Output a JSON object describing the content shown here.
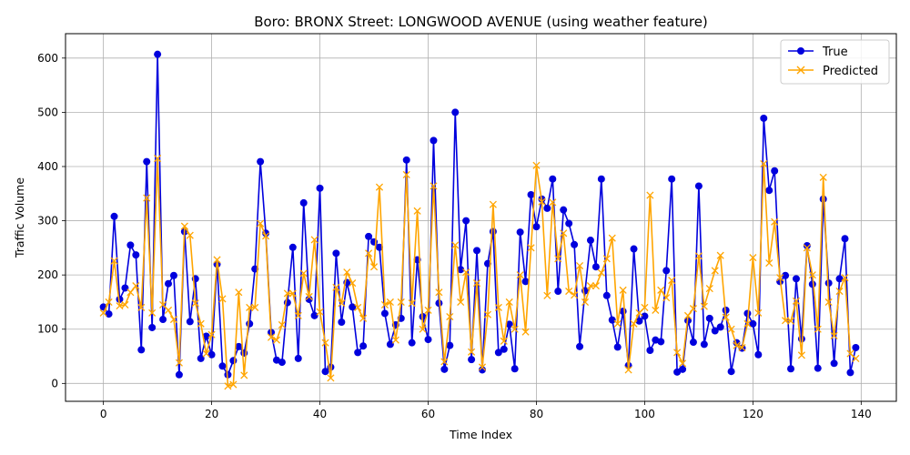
{
  "chart_data": {
    "type": "line",
    "title": "Boro: BRONX Street: LONGWOOD AVENUE (using weather feature)",
    "xlabel": "Time Index",
    "ylabel": "Traffic Volume",
    "xlim": [
      -7,
      146.5
    ],
    "ylim": [
      -33,
      645
    ],
    "xticks": [
      0,
      20,
      40,
      60,
      80,
      100,
      120,
      140
    ],
    "yticks": [
      0,
      100,
      200,
      300,
      400,
      500,
      600
    ],
    "grid": true,
    "legend": "top-right",
    "series": [
      {
        "name": "True",
        "color": "#0000dd",
        "marker": "circle",
        "values": [
          141,
          128,
          308,
          155,
          176,
          255,
          237,
          62,
          409,
          103,
          607,
          118,
          184,
          199,
          16,
          280,
          114,
          193,
          46,
          87,
          53,
          220,
          32,
          16,
          42,
          68,
          56,
          110,
          211,
          409,
          277,
          94,
          43,
          39,
          149,
          251,
          46,
          333,
          155,
          125,
          360,
          22,
          30,
          240,
          113,
          186,
          141,
          57,
          69,
          271,
          261,
          251,
          129,
          72,
          108,
          120,
          412,
          75,
          228,
          123,
          81,
          448,
          148,
          26,
          70,
          500,
          210,
          300,
          44,
          245,
          25,
          221,
          280,
          57,
          63,
          109,
          27,
          279,
          188,
          348,
          289,
          340,
          323,
          377,
          170,
          320,
          295,
          256,
          68,
          171,
          264,
          215,
          377,
          162,
          117,
          67,
          133,
          33,
          248,
          115,
          124,
          61,
          80,
          77,
          208,
          377,
          21,
          26,
          116,
          76,
          364,
          72,
          120,
          97,
          104,
          135,
          22,
          75,
          65,
          129,
          110,
          53,
          489,
          356,
          392,
          188,
          199,
          27,
          193,
          82,
          254,
          183,
          28,
          340,
          185,
          37,
          193,
          267,
          20,
          66
        ]
      },
      {
        "name": "Predicted",
        "color": "#ffa500",
        "marker": "x",
        "values": [
          130,
          150,
          226,
          143,
          145,
          168,
          180,
          140,
          342,
          130,
          415,
          145,
          135,
          118,
          38,
          290,
          273,
          148,
          110,
          55,
          90,
          228,
          156,
          -5,
          -2,
          168,
          15,
          140,
          140,
          295,
          272,
          85,
          80,
          108,
          166,
          166,
          125,
          203,
          160,
          265,
          132,
          75,
          10,
          177,
          148,
          205,
          185,
          140,
          120,
          240,
          215,
          362,
          145,
          150,
          80,
          150,
          385,
          148,
          318,
          100,
          135,
          364,
          168,
          40,
          123,
          255,
          150,
          205,
          58,
          185,
          30,
          127,
          330,
          140,
          78,
          150,
          100,
          200,
          95,
          250,
          402,
          335,
          162,
          334,
          230,
          277,
          170,
          163,
          217,
          150,
          180,
          180,
          204,
          230,
          268,
          110,
          172,
          25,
          110,
          130,
          140,
          347,
          135,
          172,
          158,
          190,
          57,
          37,
          125,
          138,
          235,
          142,
          175,
          208,
          236,
          122,
          100,
          70,
          66,
          110,
          232,
          130,
          405,
          222,
          298,
          195,
          116,
          115,
          152,
          52,
          250,
          200,
          100,
          380,
          150,
          88,
          170,
          195,
          55,
          46
        ]
      }
    ]
  }
}
